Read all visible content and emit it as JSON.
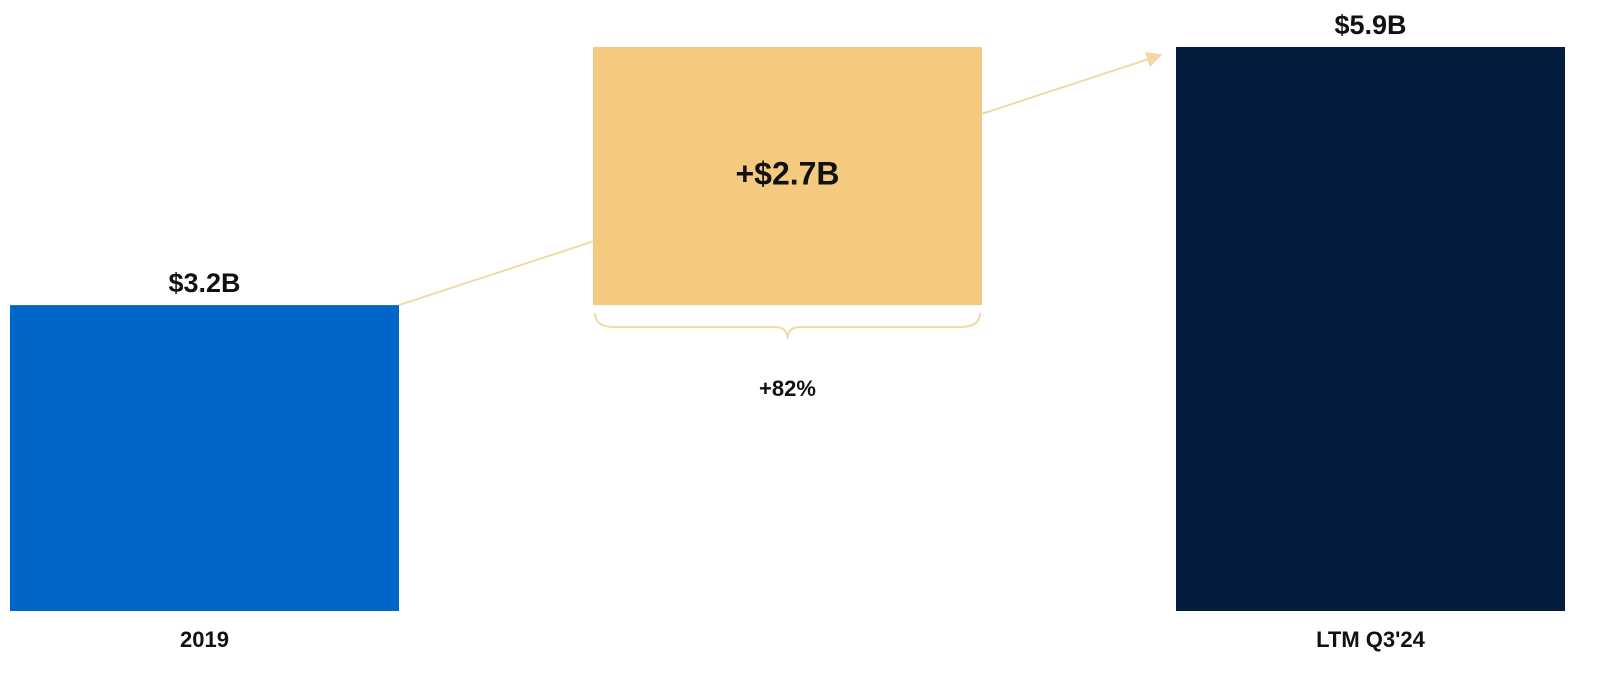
{
  "chart_data": {
    "type": "waterfall",
    "categories": [
      "2019",
      null,
      "LTM Q3'24"
    ],
    "values": [
      3.2,
      2.7,
      5.9
    ],
    "value_labels": [
      "$3.2B",
      "+$2.7B",
      "$5.9B"
    ],
    "measures": [
      "absolute",
      "relative",
      "total"
    ],
    "colors": [
      "#0066c8",
      "#f3ca80",
      "#041c3d"
    ],
    "annotations": [
      "+82%"
    ]
  }
}
